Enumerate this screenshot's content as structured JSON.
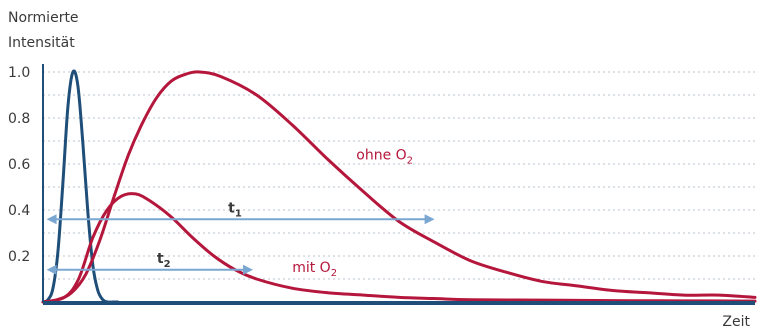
{
  "chart_data": {
    "type": "line",
    "ylabel_line1": "Normierte",
    "ylabel_line2": "Intensität",
    "xlabel": "Zeit",
    "ylim": [
      0,
      1.0
    ],
    "xlim": [
      0,
      100
    ],
    "yticks": [
      "0.2",
      "0.4",
      "0.6",
      "0.8",
      "1.0"
    ],
    "grid": true,
    "colors": {
      "excitation": "#1f4e79",
      "red": "#b5173c",
      "arrow": "#7aa7d1",
      "axis": "#1f4e79"
    },
    "series": [
      {
        "key": "excitation",
        "x": [
          0.0,
          0.7,
          1.4,
          2.1,
          2.8,
          3.5,
          4.2,
          4.9,
          5.6,
          6.3,
          7.0,
          7.7,
          8.4,
          9.1,
          9.8,
          10.5
        ],
        "y": [
          0.0,
          0.01,
          0.06,
          0.22,
          0.52,
          0.85,
          1.0,
          0.94,
          0.69,
          0.39,
          0.16,
          0.05,
          0.01,
          0.0,
          0.0,
          0.0
        ]
      },
      {
        "key": "ohne_o2",
        "x": [
          0,
          2,
          4,
          6,
          8,
          10,
          12,
          14,
          16,
          18,
          20,
          22,
          25,
          30,
          35,
          40,
          45,
          50,
          55,
          60,
          65,
          70,
          75,
          80,
          85,
          90,
          95,
          100
        ],
        "y": [
          0.0,
          0.01,
          0.04,
          0.12,
          0.27,
          0.46,
          0.64,
          0.78,
          0.89,
          0.96,
          0.99,
          1.0,
          0.98,
          0.9,
          0.77,
          0.62,
          0.48,
          0.35,
          0.26,
          0.18,
          0.13,
          0.09,
          0.07,
          0.05,
          0.04,
          0.03,
          0.03,
          0.02
        ]
      },
      {
        "key": "mit_o2",
        "x": [
          0,
          3,
          5,
          7,
          9,
          11,
          13,
          15,
          18,
          21,
          24,
          27,
          30,
          35,
          40,
          45,
          50,
          55,
          60,
          70,
          80,
          90,
          100
        ],
        "y": [
          0.0,
          0.02,
          0.1,
          0.28,
          0.4,
          0.46,
          0.47,
          0.44,
          0.37,
          0.28,
          0.2,
          0.14,
          0.1,
          0.06,
          0.04,
          0.03,
          0.02,
          0.015,
          0.01,
          0.008,
          0.006,
          0.005,
          0.004
        ]
      }
    ],
    "labels": {
      "ohne": {
        "text": "ohne O",
        "sub": "2",
        "x": 44,
        "y": 0.62
      },
      "mit": {
        "text": "mit O",
        "sub": "2",
        "x": 35,
        "y": 0.13
      }
    },
    "arrows": [
      {
        "label": "t",
        "sub": "1",
        "x_start": 0.5,
        "x_end": 55,
        "y": 0.36,
        "label_x": 26,
        "label_y": 0.39
      },
      {
        "label": "t",
        "sub": "2",
        "x_start": 0.5,
        "x_end": 29.5,
        "y": 0.14,
        "label_x": 16,
        "label_y": 0.17
      }
    ]
  }
}
